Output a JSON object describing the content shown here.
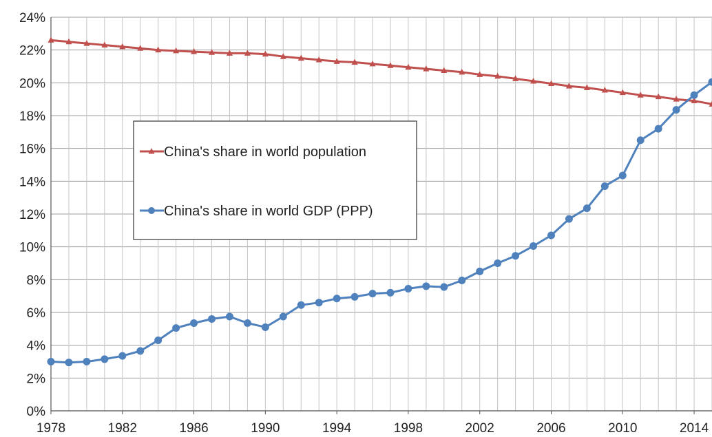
{
  "chart_data": {
    "type": "line",
    "title": "",
    "xlabel": "",
    "ylabel": "",
    "xlim": [
      1978,
      2015
    ],
    "ylim": [
      0,
      24
    ],
    "y_tick_values": [
      0,
      2,
      4,
      6,
      8,
      10,
      12,
      14,
      16,
      18,
      20,
      22,
      24
    ],
    "y_tick_labels": [
      "0%",
      "2%",
      "4%",
      "6%",
      "8%",
      "10%",
      "12%",
      "14%",
      "16%",
      "18%",
      "20%",
      "22%",
      "24%"
    ],
    "x_tick_values": [
      1978,
      1982,
      1986,
      1990,
      1994,
      1998,
      2002,
      2006,
      2010,
      2014
    ],
    "x_tick_labels": [
      "1978",
      "1982",
      "1986",
      "1990",
      "1994",
      "1998",
      "2002",
      "2006",
      "2010",
      "2014"
    ],
    "grid": true,
    "legend_position": "upper-left",
    "x": [
      1978,
      1979,
      1980,
      1981,
      1982,
      1983,
      1984,
      1985,
      1986,
      1987,
      1988,
      1989,
      1990,
      1991,
      1992,
      1993,
      1994,
      1995,
      1996,
      1997,
      1998,
      1999,
      2000,
      2001,
      2002,
      2003,
      2004,
      2005,
      2006,
      2007,
      2008,
      2009,
      2010,
      2011,
      2012,
      2013,
      2014,
      2015
    ],
    "series": [
      {
        "name": "China's share in world population",
        "color": "#c0504d",
        "marker": "triangle",
        "values": [
          22.6,
          22.5,
          22.4,
          22.3,
          22.2,
          22.1,
          22.0,
          21.95,
          21.9,
          21.85,
          21.8,
          21.8,
          21.75,
          21.6,
          21.5,
          21.4,
          21.3,
          21.25,
          21.15,
          21.05,
          20.95,
          20.85,
          20.75,
          20.65,
          20.5,
          20.4,
          20.25,
          20.1,
          19.95,
          19.8,
          19.7,
          19.55,
          19.4,
          19.25,
          19.15,
          19.0,
          18.9,
          18.7
        ]
      },
      {
        "name": "China's share in world GDP (PPP)",
        "color": "#4f81bd",
        "marker": "circle",
        "values": [
          3.0,
          2.95,
          3.0,
          3.15,
          3.35,
          3.65,
          4.3,
          5.05,
          5.35,
          5.6,
          5.75,
          5.35,
          5.1,
          5.75,
          6.45,
          6.6,
          6.85,
          6.95,
          7.15,
          7.2,
          7.45,
          7.6,
          7.55,
          7.95,
          8.5,
          9.0,
          9.45,
          10.05,
          10.7,
          11.7,
          12.35,
          13.7,
          14.35,
          16.5,
          17.2,
          18.35,
          19.25,
          20.05
        ]
      }
    ]
  }
}
